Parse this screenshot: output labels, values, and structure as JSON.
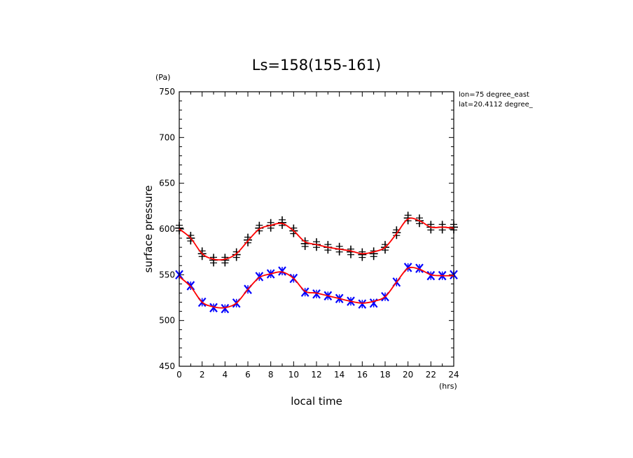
{
  "chart_data": {
    "type": "scatter",
    "title": "Ls=158(155-161)",
    "xlabel": "local time",
    "ylabel": "surface pressure",
    "xunit": "(hrs)",
    "yunit": "(Pa)",
    "xlim": [
      0,
      24
    ],
    "ylim": [
      450,
      750
    ],
    "xticks": [
      0,
      2,
      4,
      6,
      8,
      10,
      12,
      14,
      16,
      18,
      20,
      22,
      24
    ],
    "yticks": [
      450,
      500,
      550,
      600,
      650,
      700,
      750
    ],
    "annotations": [
      "lon=75 degree_east",
      "lat=20.4112 degree_"
    ],
    "grid": false,
    "colors": {
      "fit_line": "#ff0000",
      "upper_marker": "#000000",
      "lower_marker": "#0000ff",
      "frame": "#000000"
    },
    "x": [
      0,
      1,
      2,
      3,
      4,
      5,
      6,
      7,
      8,
      9,
      10,
      11,
      12,
      13,
      14,
      15,
      16,
      17,
      18,
      19,
      20,
      21,
      22,
      23,
      24
    ],
    "series": [
      {
        "marker": "plus",
        "values": [
          601,
          590,
          573,
          566,
          566,
          572,
          588,
          601,
          604,
          607,
          598,
          584,
          583,
          580,
          578,
          575,
          572,
          573,
          580,
          596,
          612,
          609,
          602,
          602,
          602
        ],
        "fit": [
          600,
          590,
          573,
          567,
          567,
          573,
          587,
          600,
          604,
          606,
          598,
          586,
          583,
          580,
          578,
          576,
          573,
          575,
          580,
          595,
          611,
          609,
          602,
          602,
          601
        ]
      },
      {
        "marker": "x",
        "values": [
          550,
          538,
          520,
          514,
          513,
          519,
          534,
          548,
          551,
          554,
          546,
          531,
          529,
          527,
          524,
          521,
          518,
          519,
          526,
          542,
          558,
          557,
          549,
          549,
          550
        ],
        "fit": [
          548,
          537,
          520,
          515,
          514,
          519,
          534,
          547,
          551,
          553,
          546,
          532,
          530,
          527,
          524,
          521,
          519,
          521,
          526,
          542,
          557,
          556,
          550,
          549,
          549
        ]
      }
    ]
  }
}
